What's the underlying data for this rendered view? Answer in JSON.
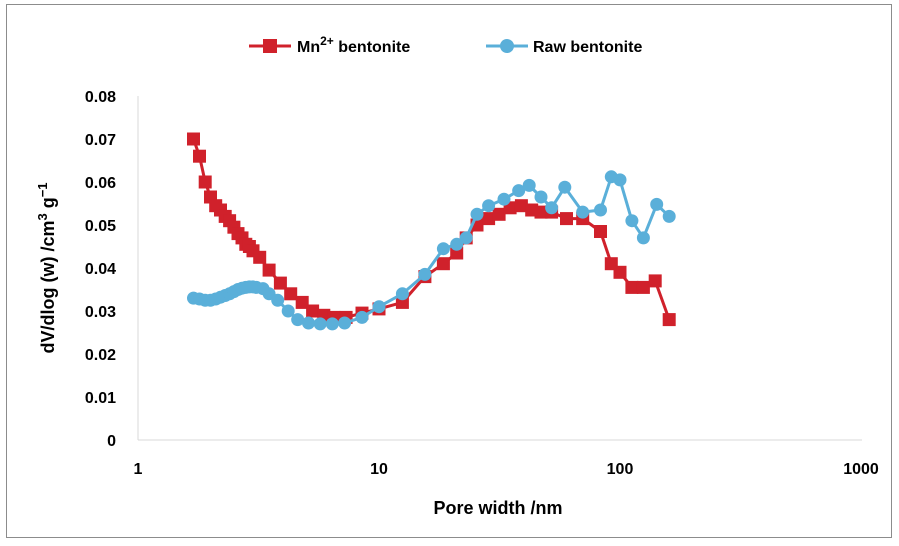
{
  "chart_data": {
    "type": "line",
    "xscale": "log",
    "xlim": [
      1,
      1000
    ],
    "ylim": [
      0,
      0.08
    ],
    "xticks": [
      "1",
      "10",
      "100",
      "1000"
    ],
    "xtick_values": [
      1,
      10,
      100,
      1000
    ],
    "yticks": [
      "0",
      "0.01",
      "0.02",
      "0.03",
      "0.04",
      "0.05",
      "0.06",
      "0.07",
      "0.08"
    ],
    "ytick_values": [
      0,
      0.01,
      0.02,
      0.03,
      0.04,
      0.05,
      0.06,
      0.07,
      0.08
    ],
    "xlabel": "Pore width /nm",
    "ylabel_main": "dV/dlog (w) /cm",
    "ylabel_sup1": "3",
    "ylabel_mid": " g",
    "ylabel_sup2": "−1",
    "grid": false,
    "legend_position": "top",
    "series": [
      {
        "name": "Mn2+ bentonite",
        "name_base": "Mn",
        "name_sup": "2+",
        "name_rest": " bentonite",
        "color": "#d0212b",
        "marker": "square",
        "x": [
          1.7,
          1.8,
          1.9,
          2.0,
          2.1,
          2.2,
          2.3,
          2.4,
          2.5,
          2.6,
          2.7,
          2.8,
          2.9,
          3.0,
          3.2,
          3.5,
          3.9,
          4.3,
          4.8,
          5.3,
          5.9,
          6.5,
          7.3,
          8.5,
          10.0,
          12.5,
          15.5,
          18.5,
          21.0,
          23.0,
          25.5,
          28.5,
          31.5,
          35.0,
          39.0,
          43.0,
          47.0,
          52.0,
          60.0,
          70.0,
          83.0,
          92.0,
          100.0,
          112.0,
          125.0,
          140.0,
          160.0
        ],
        "y": [
          0.07,
          0.066,
          0.06,
          0.0565,
          0.0545,
          0.0535,
          0.052,
          0.051,
          0.0495,
          0.048,
          0.047,
          0.0455,
          0.045,
          0.044,
          0.0425,
          0.0395,
          0.0365,
          0.034,
          0.032,
          0.03,
          0.029,
          0.0285,
          0.0285,
          0.0295,
          0.0305,
          0.032,
          0.038,
          0.041,
          0.0435,
          0.047,
          0.05,
          0.0515,
          0.0525,
          0.054,
          0.0545,
          0.0535,
          0.053,
          0.053,
          0.0515,
          0.0515,
          0.0485,
          0.041,
          0.039,
          0.0355,
          0.0355,
          0.037,
          0.028
        ]
      },
      {
        "name": "Raw bentonite",
        "color": "#5aafd9",
        "marker": "circle",
        "x": [
          1.7,
          1.8,
          1.9,
          2.0,
          2.1,
          2.2,
          2.3,
          2.4,
          2.5,
          2.6,
          2.7,
          2.8,
          2.9,
          3.0,
          3.1,
          3.3,
          3.5,
          3.8,
          4.2,
          4.6,
          5.1,
          5.7,
          6.4,
          7.2,
          8.5,
          10.0,
          12.5,
          15.5,
          18.5,
          21.0,
          23.0,
          25.5,
          28.5,
          33.0,
          38.0,
          42.0,
          47.0,
          52.0,
          59.0,
          70.0,
          83.0,
          92.0,
          100.0,
          112.0,
          125.0,
          142.0,
          160.0
        ],
        "y": [
          0.033,
          0.0328,
          0.0325,
          0.0325,
          0.0328,
          0.0332,
          0.0336,
          0.034,
          0.0345,
          0.035,
          0.0353,
          0.0355,
          0.0356,
          0.0356,
          0.0355,
          0.0352,
          0.034,
          0.0325,
          0.03,
          0.028,
          0.0272,
          0.027,
          0.027,
          0.0272,
          0.0285,
          0.031,
          0.034,
          0.0385,
          0.0445,
          0.0455,
          0.047,
          0.0525,
          0.0545,
          0.056,
          0.058,
          0.0592,
          0.0565,
          0.054,
          0.0588,
          0.053,
          0.0535,
          0.0612,
          0.0605,
          0.051,
          0.047,
          0.0548,
          0.052
        ]
      }
    ]
  }
}
